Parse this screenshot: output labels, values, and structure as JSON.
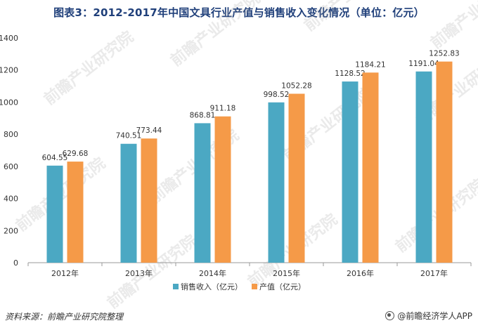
{
  "title": "图表3：2012-2017年中国文具行业产值与销售收入变化情况（单位：亿元）",
  "source_note": "资料来源：前瞻产业研究院整理",
  "brand": "@前瞻经济学人APP",
  "watermark": "前瞻产业研究院",
  "colors": {
    "sales": "#4ba8c3",
    "output": "#f59a48",
    "axis": "#999999",
    "text": "#333333"
  },
  "chart_data": {
    "type": "bar",
    "categories": [
      "2012年",
      "2013年",
      "2014年",
      "2015年",
      "2016年",
      "2017年"
    ],
    "series": [
      {
        "name": "销售收入（亿元）",
        "values": [
          604.55,
          740.51,
          868.81,
          998.52,
          1128.52,
          1191.04
        ]
      },
      {
        "name": "产值（亿元）",
        "values": [
          629.68,
          773.44,
          911.18,
          1052.28,
          1184.21,
          1252.83
        ]
      }
    ],
    "value_labels": [
      [
        "604.55",
        "740.51",
        "868.81",
        "998.52",
        "1128.52",
        "1191.04"
      ],
      [
        "629.68",
        "773.44",
        "911.18",
        "1052.28",
        "1184.21",
        "1252.83"
      ]
    ],
    "yticks": [
      "0",
      "200",
      "400",
      "600",
      "800",
      "1000",
      "1200",
      "1400"
    ],
    "ylim": [
      0,
      1400
    ],
    "grid": false,
    "legend": "bottom-center"
  }
}
